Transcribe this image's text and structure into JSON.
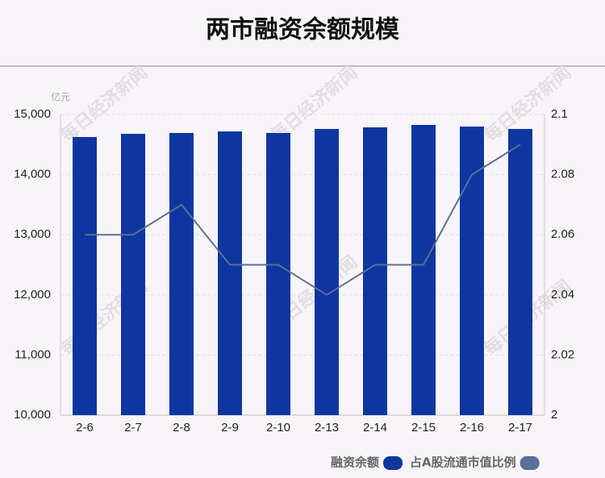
{
  "chart_data": {
    "type": "bar",
    "title": "两市融资余额规模",
    "y_unit": "亿元",
    "watermark": "每日经济新闻",
    "categories": [
      "2-6",
      "2-7",
      "2-8",
      "2-9",
      "2-10",
      "2-13",
      "2-14",
      "2-15",
      "2-16",
      "2-17"
    ],
    "series": [
      {
        "name": "融资余额",
        "color": "#0e36a0",
        "type": "bar",
        "values": [
          14625,
          14678,
          14692,
          14718,
          14692,
          14759,
          14786,
          14826,
          14799,
          14759
        ]
      },
      {
        "name": "占A股流通市值比例",
        "color": "#5b6f9a",
        "type": "line",
        "axis": "y2",
        "values": [
          2.06,
          2.06,
          2.07,
          2.05,
          2.05,
          2.04,
          2.05,
          2.05,
          2.08,
          2.09
        ]
      }
    ],
    "ylim": [
      10000,
      15000
    ],
    "yticks": [
      {
        "value": 10000,
        "label": "10,000"
      },
      {
        "value": 11000,
        "label": "11,000"
      },
      {
        "value": 12000,
        "label": "12,000"
      },
      {
        "value": 13000,
        "label": "13,000"
      },
      {
        "value": 14000,
        "label": "14,000"
      },
      {
        "value": 15000,
        "label": "15,000"
      }
    ],
    "y2lim": [
      2,
      2.1
    ],
    "y2ticks": [
      2,
      2.02,
      2.04,
      2.06,
      2.08,
      2.1
    ],
    "grid": true
  }
}
